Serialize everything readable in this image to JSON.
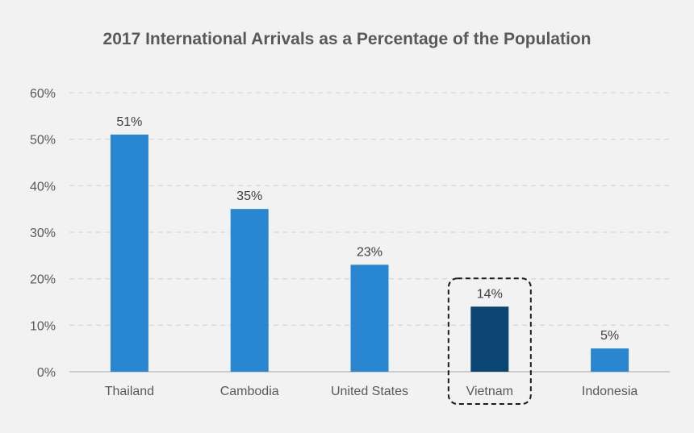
{
  "chart_data": {
    "type": "bar",
    "title": "2017 International Arrivals as a Percentage of the Population",
    "xlabel": "",
    "ylabel": "",
    "categories": [
      "Thailand",
      "Cambodia",
      "United States",
      "Vietnam",
      "Indonesia"
    ],
    "values": [
      51,
      35,
      23,
      14,
      5
    ],
    "value_labels": [
      "51%",
      "35%",
      "23%",
      "14%",
      "5%"
    ],
    "ylim": [
      0,
      60
    ],
    "yticks": [
      0,
      10,
      20,
      30,
      40,
      50,
      60
    ],
    "ytick_labels": [
      "0%",
      "10%",
      "20%",
      "30%",
      "40%",
      "50%",
      "60%"
    ],
    "grid": "horizontal dashed",
    "legend": "none",
    "highlighted_category": "Vietnam",
    "colors": {
      "bar": "#2986d1",
      "highlight_bar": "#0b4673",
      "grid": "#d9d9d9",
      "axis": "#bfbfbf",
      "background": "#f2f2f2"
    }
  }
}
